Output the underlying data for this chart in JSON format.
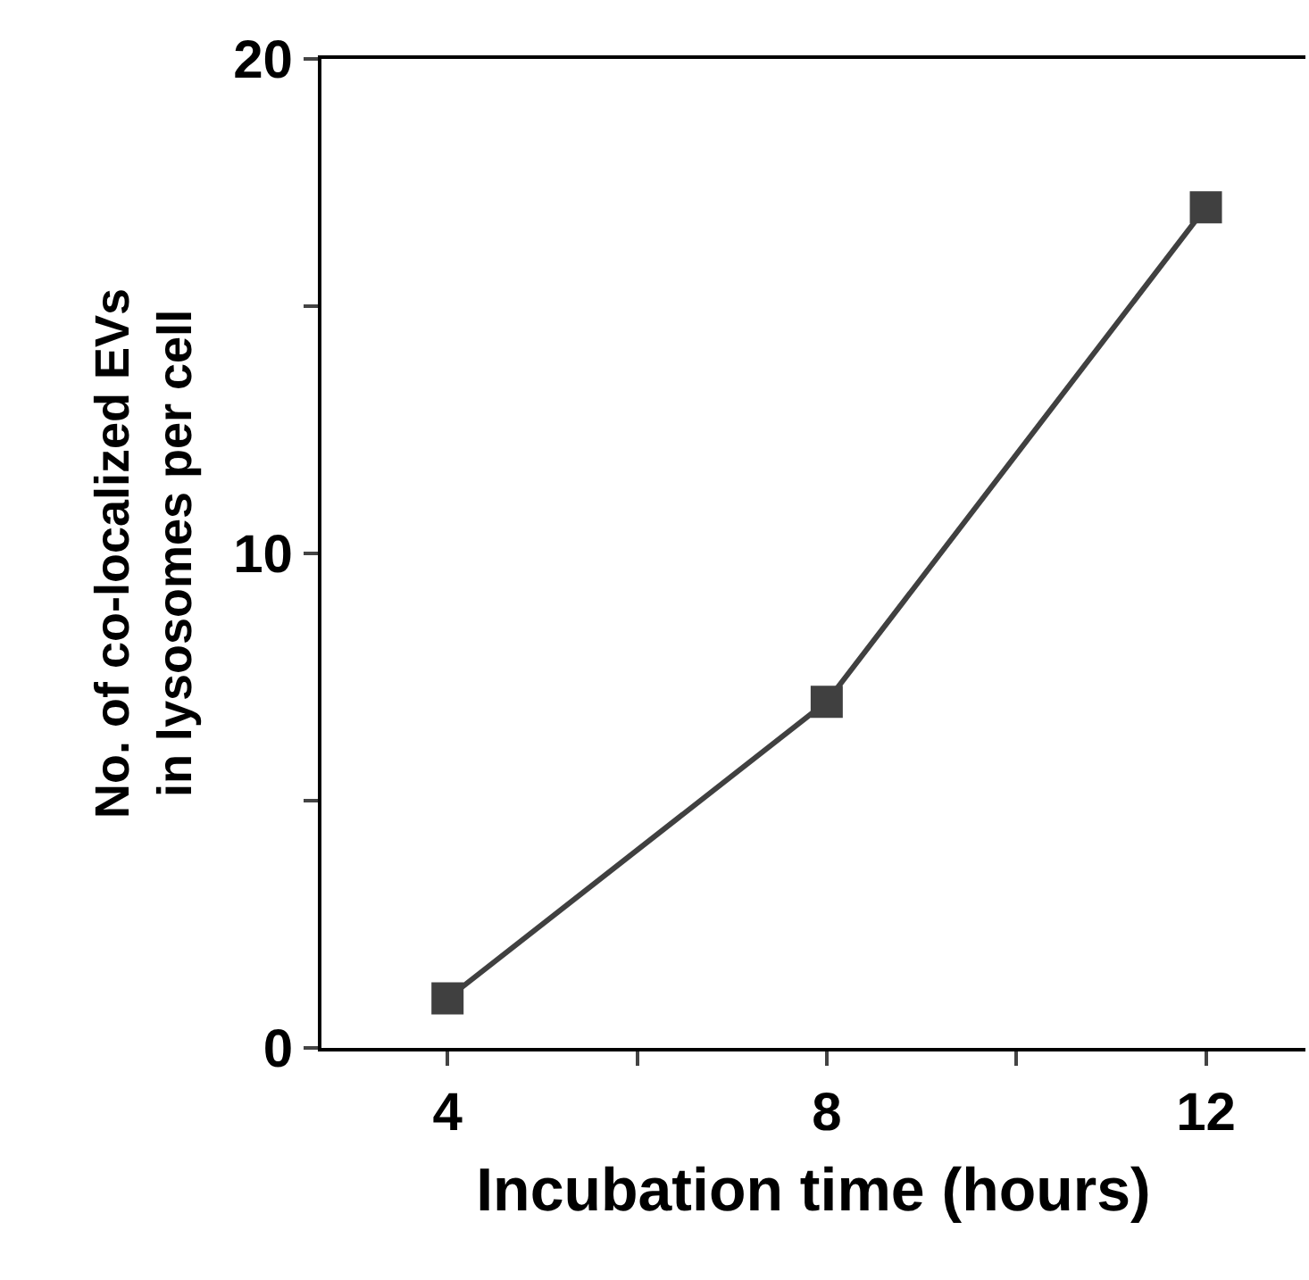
{
  "chart_data": {
    "type": "line",
    "xlabel": "Incubation time (hours)",
    "ylabel": "No. of co-localized EVs\nin lysosomes per cell",
    "x": [
      4,
      8,
      12
    ],
    "series": [
      {
        "color": "#404040",
        "values": [
          1,
          7,
          17
        ]
      }
    ],
    "xlim": [
      2.67,
      13.05
    ],
    "xticks": [
      4,
      {
        "value": 6,
        "label": null
      },
      8,
      {
        "value": 10,
        "label": null
      },
      12
    ],
    "ylim": [
      0,
      20
    ],
    "yticks": [
      0,
      {
        "value": 5,
        "label": null
      },
      10,
      {
        "value": 15,
        "label": null
      },
      20
    ],
    "marker": "square",
    "line_style": "solid",
    "legend": false
  }
}
